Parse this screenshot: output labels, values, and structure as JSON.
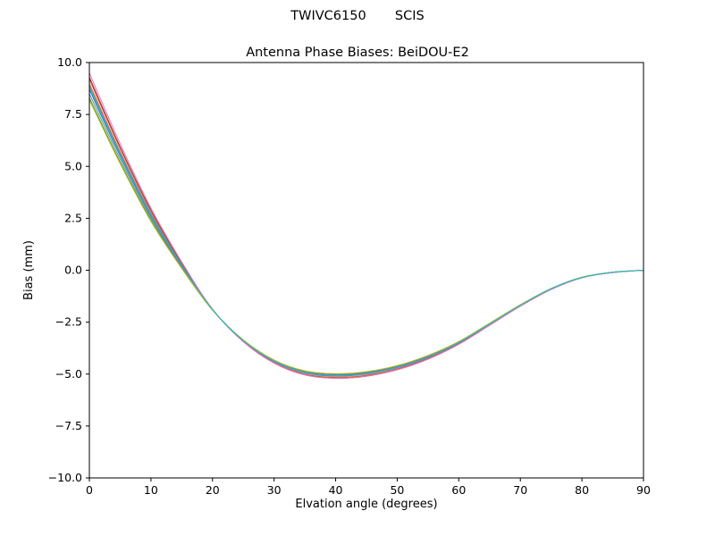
{
  "chart_data": {
    "type": "line",
    "suptitle": "TWIVC6150       SCIS",
    "title": "Antenna Phase Biases: BeiDOU-E2",
    "xlabel": "Elvation angle (degrees)",
    "ylabel": "Bias (mm)",
    "xlim": [
      0,
      90
    ],
    "ylim": [
      -10,
      10
    ],
    "xticks": [
      0,
      10,
      20,
      30,
      40,
      50,
      60,
      70,
      80,
      90
    ],
    "yticks": [
      -10,
      -7.5,
      -5,
      -2.5,
      0,
      2.5,
      5,
      7.5,
      10
    ],
    "grid": false,
    "legend": "none",
    "frame_color": "#000000",
    "x": [
      0,
      5,
      10,
      15,
      20,
      25,
      30,
      35,
      40,
      45,
      50,
      55,
      60,
      65,
      70,
      75,
      80,
      85,
      90
    ],
    "series": [
      {
        "name": "line-01",
        "color": "#1f77b4",
        "values": [
          8.7,
          5.5,
          2.6,
          0.2,
          -1.9,
          -3.38,
          -4.37,
          -4.91,
          -5.05,
          -4.95,
          -4.66,
          -4.16,
          -3.47,
          -2.58,
          -1.69,
          -0.89,
          -0.35,
          -0.1,
          0
        ]
      },
      {
        "name": "line-02",
        "color": "#ff7f0e",
        "values": [
          9.0,
          5.73,
          2.75,
          0.28,
          -1.9,
          -3.42,
          -4.44,
          -5.0,
          -5.15,
          -5.05,
          -4.75,
          -4.24,
          -3.53,
          -2.62,
          -1.72,
          -0.91,
          -0.36,
          -0.1,
          0
        ]
      },
      {
        "name": "line-03",
        "color": "#2ca02c",
        "values": [
          8.3,
          5.2,
          2.4,
          0.1,
          -1.92,
          -3.36,
          -4.33,
          -4.86,
          -5.0,
          -4.9,
          -4.61,
          -4.12,
          -3.44,
          -2.56,
          -1.67,
          -0.88,
          -0.34,
          -0.1,
          0
        ]
      },
      {
        "name": "line-04",
        "color": "#d62728",
        "values": [
          9.3,
          5.95,
          2.9,
          0.35,
          -1.88,
          -3.44,
          -4.47,
          -5.04,
          -5.2,
          -5.1,
          -4.79,
          -4.28,
          -3.56,
          -2.65,
          -1.73,
          -0.92,
          -0.36,
          -0.11,
          0
        ]
      },
      {
        "name": "line-05",
        "color": "#9467bd",
        "values": [
          8.9,
          5.65,
          2.7,
          0.25,
          -1.9,
          -3.4,
          -4.4,
          -4.95,
          -5.1,
          -5.0,
          -4.7,
          -4.2,
          -3.5,
          -2.6,
          -1.7,
          -0.9,
          -0.35,
          -0.1,
          0
        ]
      },
      {
        "name": "line-06",
        "color": "#8c564b",
        "values": [
          9.2,
          5.88,
          2.85,
          0.33,
          -1.89,
          -3.43,
          -4.46,
          -5.02,
          -5.18,
          -5.08,
          -4.77,
          -4.26,
          -3.55,
          -2.64,
          -1.72,
          -0.92,
          -0.36,
          -0.1,
          0
        ]
      },
      {
        "name": "line-07",
        "color": "#e377c2",
        "values": [
          9.5,
          6.1,
          3.0,
          0.4,
          -1.87,
          -3.44,
          -4.47,
          -5.04,
          -5.2,
          -5.1,
          -4.79,
          -4.28,
          -3.56,
          -2.65,
          -1.73,
          -0.92,
          -0.36,
          -0.11,
          0
        ]
      },
      {
        "name": "line-08",
        "color": "#7f7f7f",
        "values": [
          8.5,
          5.35,
          2.5,
          0.15,
          -1.91,
          -3.37,
          -4.34,
          -4.88,
          -5.02,
          -4.92,
          -4.63,
          -4.14,
          -3.45,
          -2.56,
          -1.68,
          -0.88,
          -0.34,
          -0.1,
          0
        ]
      },
      {
        "name": "line-09",
        "color": "#bcbd22",
        "values": [
          8.2,
          5.13,
          2.35,
          0.08,
          -1.93,
          -3.35,
          -4.32,
          -4.84,
          -4.98,
          -4.88,
          -4.59,
          -4.1,
          -3.43,
          -2.55,
          -1.66,
          -0.88,
          -0.34,
          -0.09,
          0
        ]
      },
      {
        "name": "line-10",
        "color": "#17becf",
        "values": [
          8.8,
          5.58,
          2.65,
          0.23,
          -1.9,
          -3.39,
          -4.38,
          -4.92,
          -5.07,
          -4.97,
          -4.67,
          -4.18,
          -3.48,
          -2.59,
          -1.69,
          -0.89,
          -0.35,
          -0.1,
          0
        ]
      }
    ]
  }
}
